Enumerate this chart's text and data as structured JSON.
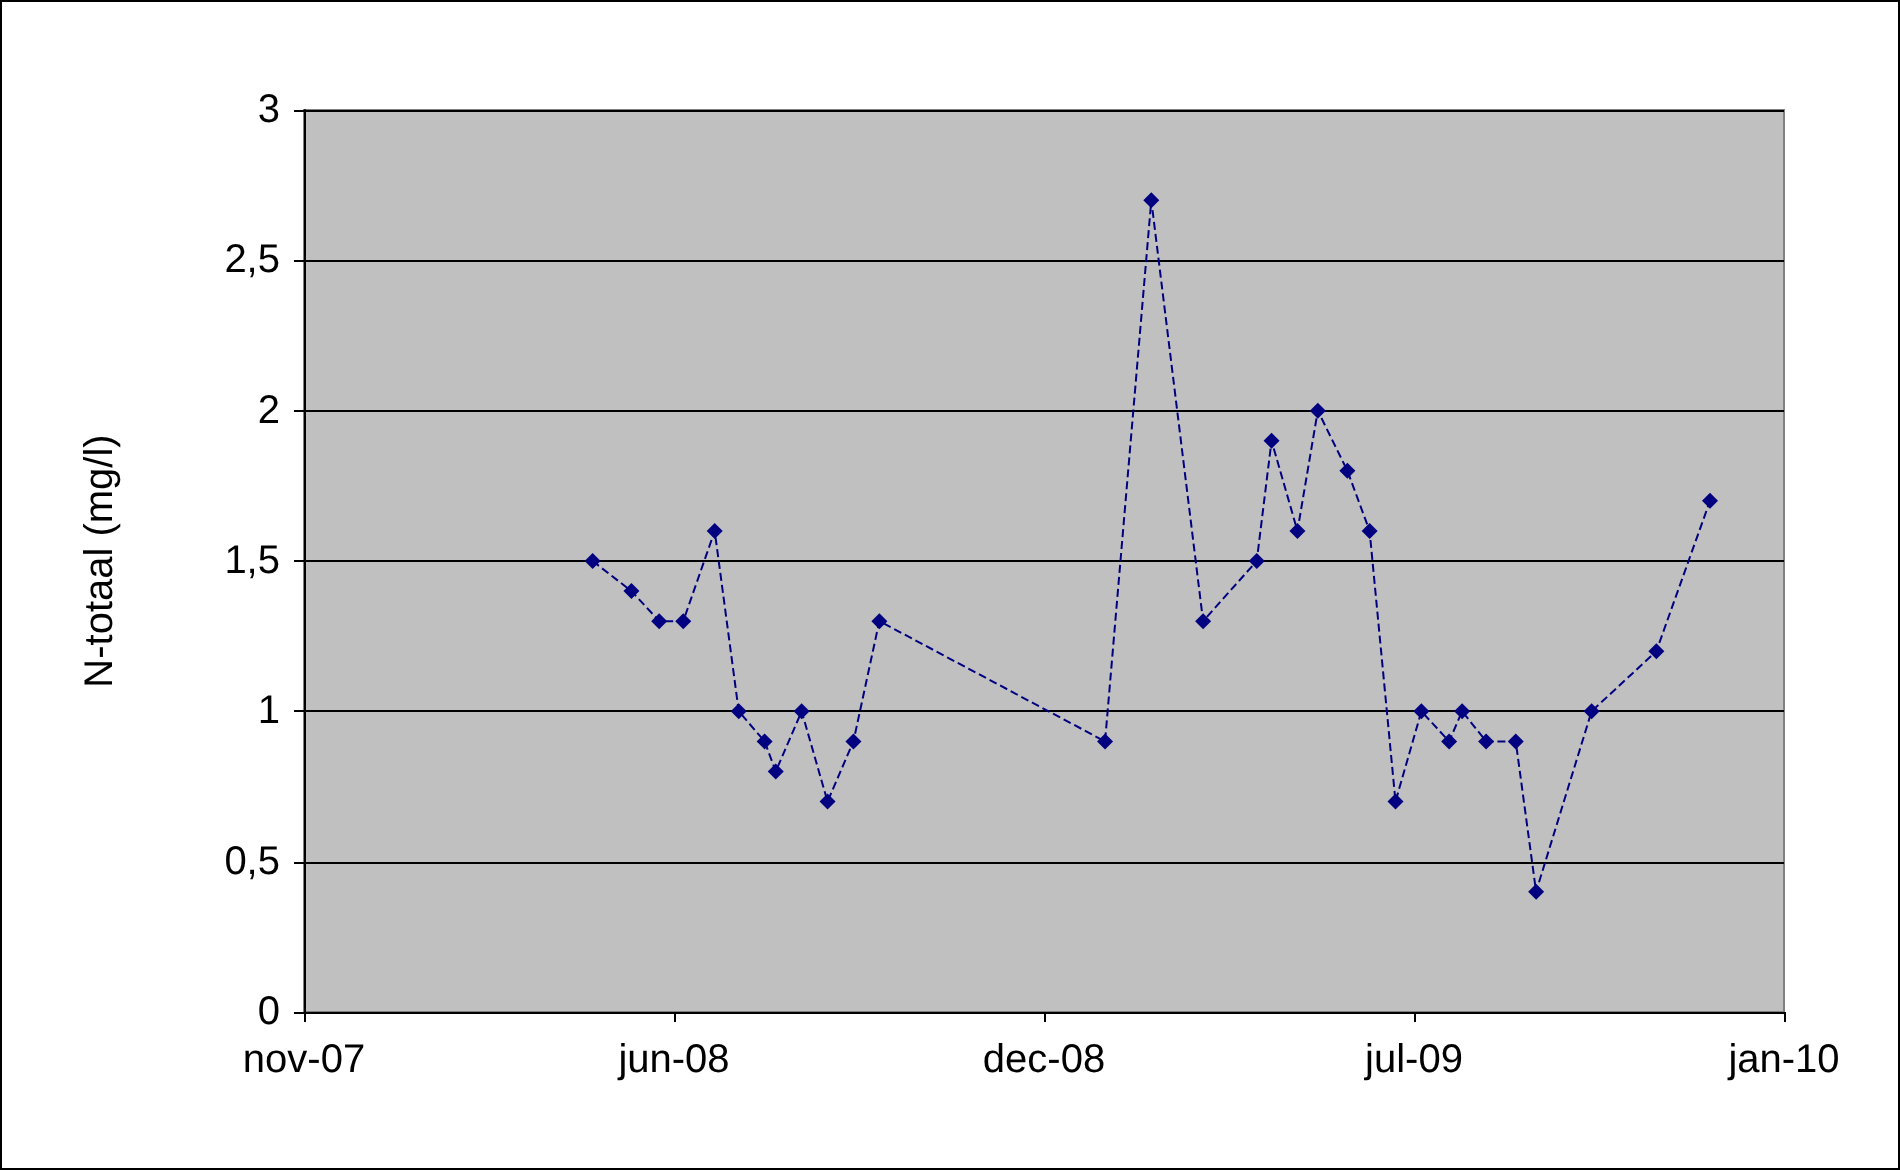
{
  "chart_data": {
    "type": "line",
    "ylabel": "N-totaal (mg/l)",
    "xlim": [
      "2007-11-14",
      "2010-01-22"
    ],
    "xticks": [
      {
        "value": "2007-11-14",
        "label": "nov-07"
      },
      {
        "value": "2008-06-01",
        "label": "jun-08"
      },
      {
        "value": "2008-12-18",
        "label": "dec-08"
      },
      {
        "value": "2009-07-06",
        "label": "jul-09"
      },
      {
        "value": "2010-01-22",
        "label": "jan-10"
      }
    ],
    "ylim": [
      0,
      3
    ],
    "yticks": [
      0,
      {
        "value": 0.5,
        "label": "0,5"
      },
      1,
      {
        "value": 1.5,
        "label": "1,5"
      },
      2,
      {
        "value": 2.5,
        "label": "2,5"
      },
      3
    ],
    "grid": "y",
    "marker": "diamond",
    "line_style": "dashed",
    "x": [
      "2008-04-18",
      "2008-05-09",
      "2008-05-24",
      "2008-06-06",
      "2008-06-23",
      "2008-07-06",
      "2008-07-20",
      "2008-07-26",
      "2008-08-09",
      "2008-08-23",
      "2008-09-06",
      "2008-09-20",
      "2009-01-20",
      "2009-02-14",
      "2009-03-14",
      "2009-04-12",
      "2009-04-20",
      "2009-05-04",
      "2009-05-15",
      "2009-05-31",
      "2009-06-12",
      "2009-06-26",
      "2009-07-10",
      "2009-07-25",
      "2009-08-01",
      "2009-08-14",
      "2009-08-30",
      "2009-09-10",
      "2009-10-10",
      "2009-11-14",
      "2009-12-13"
    ],
    "series": [
      {
        "color": "#000080",
        "values": [
          1.5,
          1.4,
          1.3,
          1.3,
          1.6,
          1.0,
          0.9,
          0.8,
          1.0,
          0.7,
          0.9,
          1.3,
          0.9,
          2.7,
          1.3,
          1.5,
          1.9,
          1.6,
          2.0,
          1.8,
          1.6,
          0.7,
          1.0,
          0.9,
          1.0,
          0.9,
          0.9,
          0.4,
          1.0,
          1.2,
          1.7
        ]
      }
    ]
  }
}
